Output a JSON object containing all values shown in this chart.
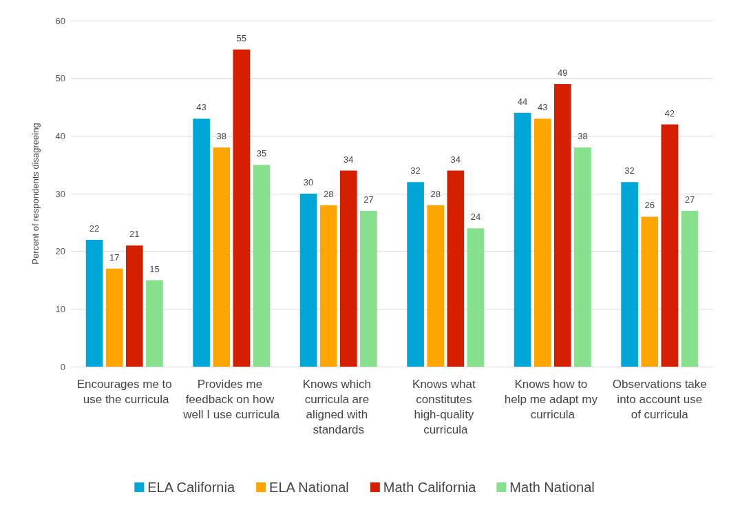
{
  "chart_data": {
    "type": "bar",
    "ylabel": "Percent of respondents disagreeing",
    "categories": [
      "Encourages me to use the curricula",
      "Provides me feedback on how well I use curricula",
      "Knows which curricula are aligned with standards",
      "Knows what constitutes high-quality curricula",
      "Knows how to help me adapt my curricula",
      "Observations take into account use of curricula"
    ],
    "series": [
      {
        "name": "ELA California",
        "color": "#00a6d6",
        "values": [
          22,
          43,
          30,
          32,
          44,
          32
        ]
      },
      {
        "name": "ELA National",
        "color": "#ffa500",
        "values": [
          17,
          38,
          28,
          28,
          43,
          26
        ]
      },
      {
        "name": "Math California",
        "color": "#d42000",
        "values": [
          21,
          55,
          34,
          34,
          49,
          42
        ]
      },
      {
        "name": "Math National",
        "color": "#86e08e",
        "values": [
          15,
          35,
          27,
          24,
          38,
          27
        ]
      }
    ],
    "ylim": [
      0,
      60
    ],
    "yticks": [
      0,
      10,
      20,
      30,
      40,
      50,
      60
    ],
    "grid": "y",
    "legend": "bottom",
    "data_labels": true
  }
}
